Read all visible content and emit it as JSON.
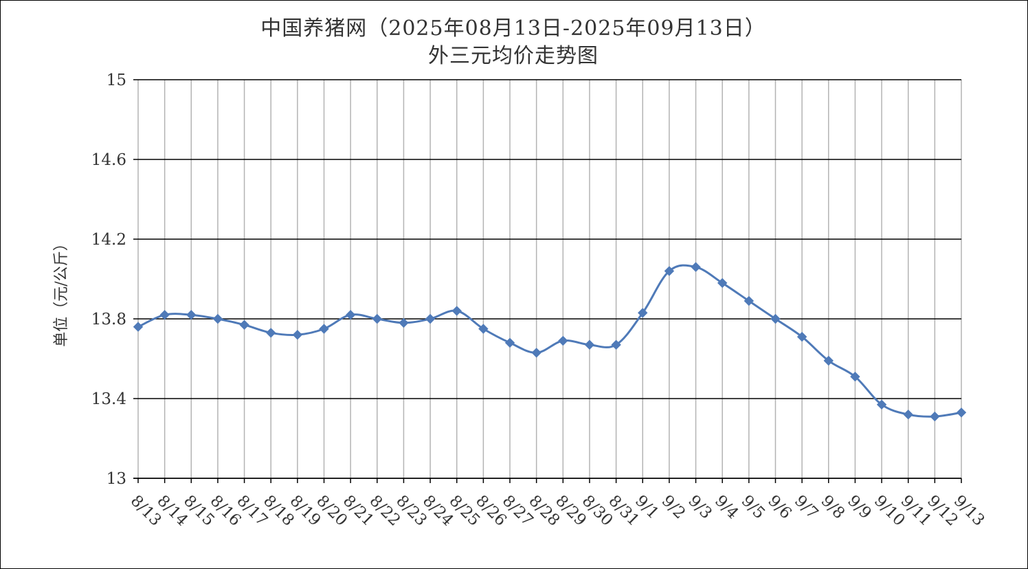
{
  "chart_data": {
    "type": "line",
    "title": "中国养猪网（2025年08月13日-2025年09月13日）",
    "subtitle": "外三元均价走势图",
    "xlabel": "",
    "ylabel": "单位（元/公斤）",
    "ylim": [
      13,
      15
    ],
    "yticks": [
      "13",
      "13.4",
      "13.8",
      "14.2",
      "14.6",
      "15"
    ],
    "ytick_values": [
      13,
      13.4,
      13.8,
      14.2,
      14.6,
      15
    ],
    "grid": true,
    "legend": "none",
    "colors": {
      "line": "#4f7ab8",
      "marker": "#4f7ab8",
      "hgrid": "#000000",
      "vgrid": "#b3b3b3",
      "text": "#333333"
    },
    "categories": [
      "8/13",
      "8/14",
      "8/15",
      "8/16",
      "8/17",
      "8/18",
      "8/19",
      "8/20",
      "8/21",
      "8/22",
      "8/23",
      "8/24",
      "8/25",
      "8/26",
      "8/27",
      "8/28",
      "8/29",
      "8/30",
      "8/31",
      "9/1",
      "9/2",
      "9/3",
      "9/4",
      "9/5",
      "9/6",
      "9/7",
      "9/8",
      "9/9",
      "9/10",
      "9/11",
      "9/12",
      "9/13"
    ],
    "series": [
      {
        "values": [
          13.76,
          13.82,
          13.82,
          13.8,
          13.77,
          13.73,
          13.72,
          13.75,
          13.82,
          13.8,
          13.78,
          13.8,
          13.84,
          13.75,
          13.68,
          13.63,
          13.69,
          13.67,
          13.67,
          13.83,
          14.04,
          14.06,
          13.98,
          13.89,
          13.8,
          13.71,
          13.59,
          13.51,
          13.37,
          13.32,
          13.31,
          13.33
        ]
      }
    ]
  }
}
